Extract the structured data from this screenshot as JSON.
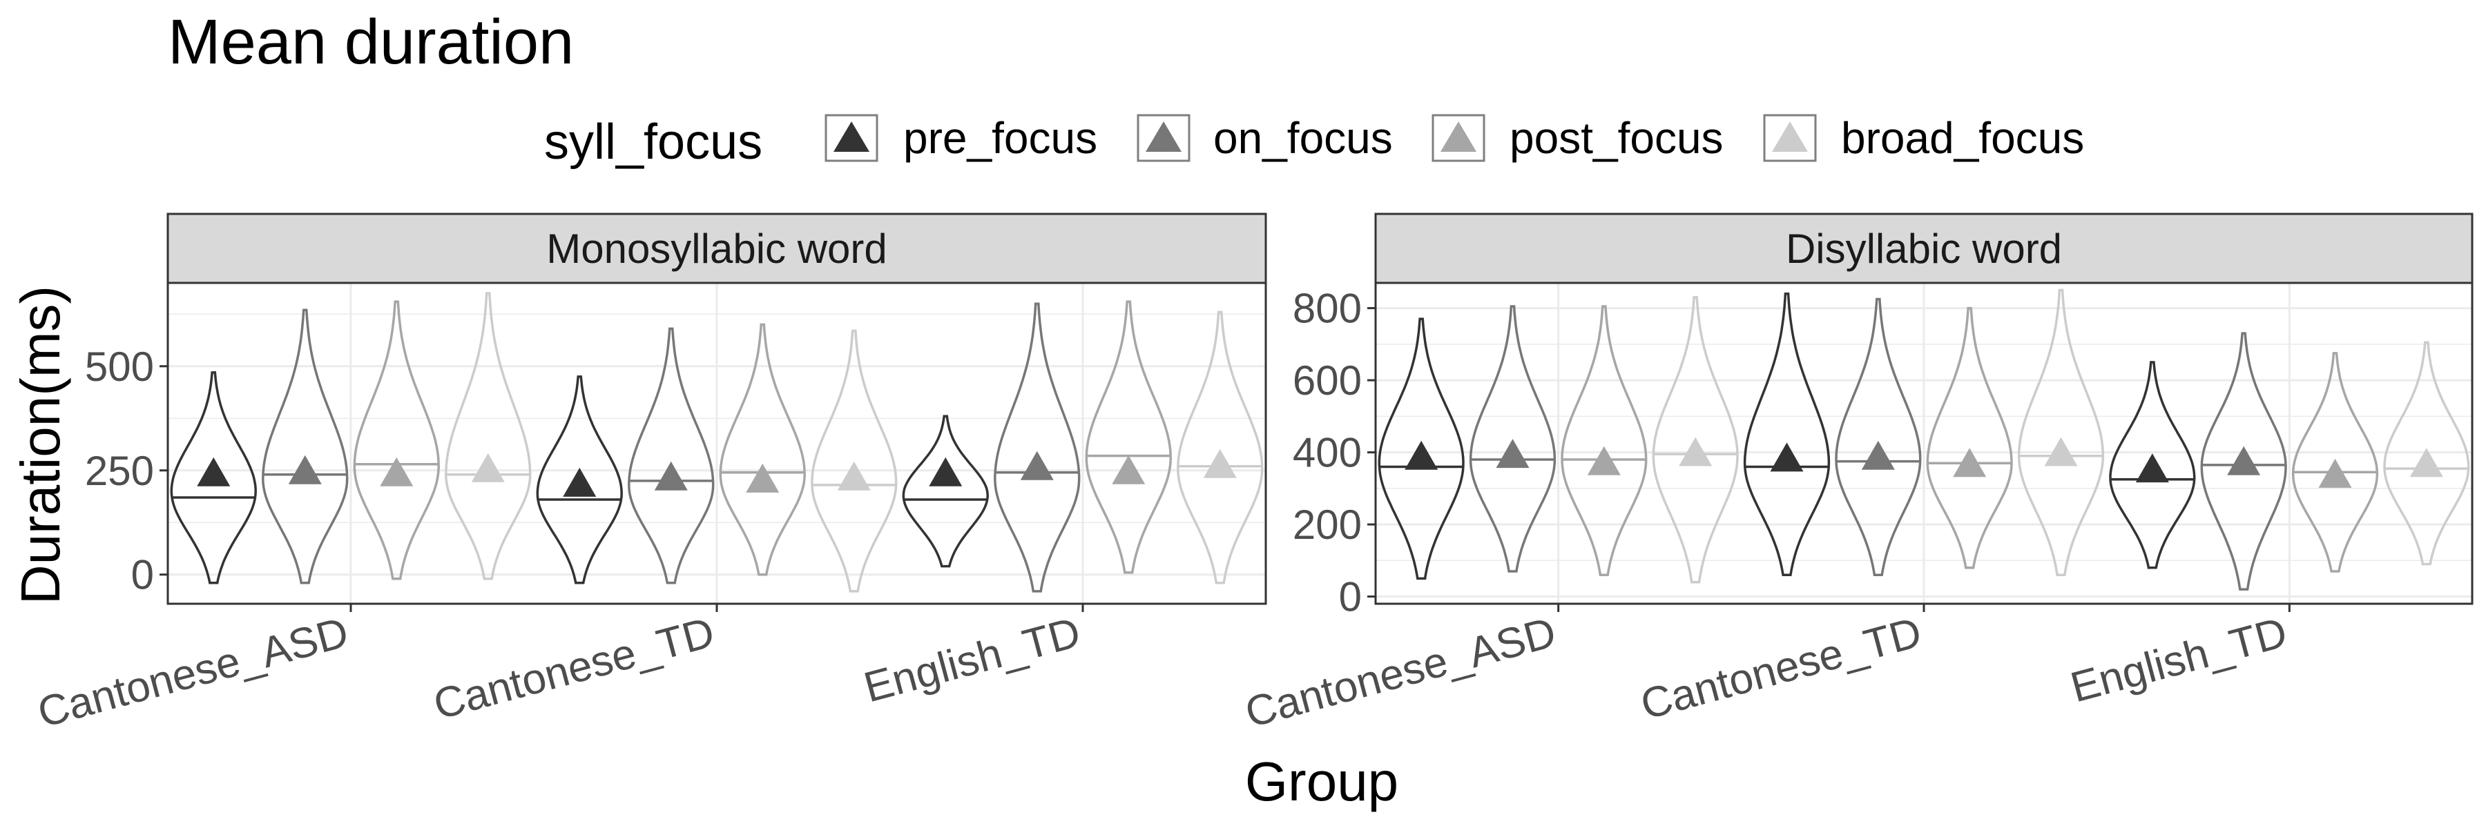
{
  "chart_data": {
    "type": "violin",
    "title": "Mean duration",
    "xlabel": "Group",
    "ylabel": "Duration(ms)",
    "legend": {
      "title": "syll_focus",
      "position": "top",
      "entries": [
        "pre_focus",
        "on_focus",
        "post_focus",
        "broad_focus"
      ]
    },
    "colors": {
      "pre_focus": "#333333",
      "on_focus": "#777777",
      "post_focus": "#a6a6a6",
      "broad_focus": "#cccccc"
    },
    "categories": [
      "Cantonese_ASD",
      "Cantonese_TD",
      "English_TD"
    ],
    "grid": true,
    "panels": [
      {
        "title": "Monosyllabic word",
        "ylim": [
          -70,
          700
        ],
        "yticks": [
          0,
          250,
          500
        ],
        "ytick_labels": [
          "0",
          "250",
          "500"
        ],
        "series": [
          {
            "name": "pre_focus",
            "mean": [
              245,
              220,
              245
            ],
            "median": [
              185,
              180,
              180
            ],
            "min": [
              -20,
              -20,
              20
            ],
            "max": [
              485,
              475,
              380
            ],
            "mode": [
              200,
              195,
              190
            ]
          },
          {
            "name": "on_focus",
            "mean": [
              250,
              235,
              260
            ],
            "median": [
              240,
              225,
              245
            ],
            "min": [
              -20,
              -20,
              -40
            ],
            "max": [
              635,
              590,
              650
            ],
            "mode": [
              230,
              215,
              230
            ]
          },
          {
            "name": "post_focus",
            "mean": [
              245,
              230,
              250
            ],
            "median": [
              265,
              245,
              285
            ],
            "min": [
              -10,
              0,
              5
            ],
            "max": [
              655,
              600,
              655
            ],
            "mode": [
              260,
              240,
              280
            ]
          },
          {
            "name": "broad_focus",
            "mean": [
              255,
              235,
              265
            ],
            "median": [
              240,
              215,
              260
            ],
            "min": [
              -10,
              -40,
              -20
            ],
            "max": [
              675,
              585,
              630
            ],
            "mode": [
              240,
              220,
              255
            ]
          }
        ]
      },
      {
        "title": "Disyllabic word",
        "ylim": [
          -20,
          870
        ],
        "yticks": [
          0,
          200,
          400,
          600,
          800
        ],
        "ytick_labels": [
          "0",
          "200",
          "400",
          "600",
          "800"
        ],
        "series": [
          {
            "name": "pre_focus",
            "mean": [
              390,
              385,
              355
            ],
            "median": [
              360,
              360,
              325
            ],
            "min": [
              50,
              60,
              80
            ],
            "max": [
              770,
              840,
              650
            ],
            "mode": [
              370,
              370,
              330
            ]
          },
          {
            "name": "on_focus",
            "mean": [
              395,
              390,
              375
            ],
            "median": [
              380,
              375,
              365
            ],
            "min": [
              70,
              60,
              20
            ],
            "max": [
              805,
              825,
              730
            ],
            "mode": [
              380,
              380,
              360
            ]
          },
          {
            "name": "post_focus",
            "mean": [
              375,
              370,
              340
            ],
            "median": [
              380,
              370,
              345
            ],
            "min": [
              60,
              80,
              70
            ],
            "max": [
              805,
              800,
              675
            ],
            "mode": [
              380,
              370,
              340
            ]
          },
          {
            "name": "broad_focus",
            "mean": [
              400,
              400,
              370
            ],
            "median": [
              395,
              390,
              355
            ],
            "min": [
              40,
              60,
              90
            ],
            "max": [
              830,
              850,
              705
            ],
            "mode": [
              390,
              390,
              360
            ]
          }
        ]
      }
    ]
  }
}
